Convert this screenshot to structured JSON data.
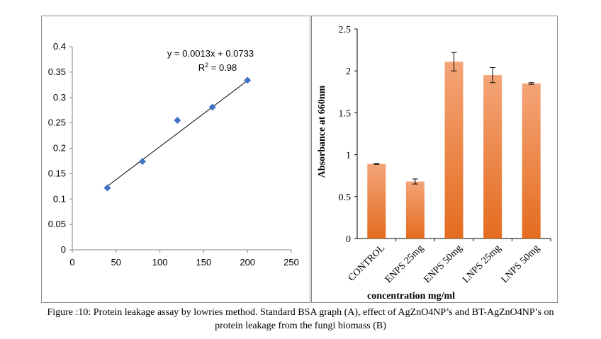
{
  "chart_data": [
    {
      "type": "scatter",
      "x": [
        40,
        80,
        120,
        160,
        200
      ],
      "y": [
        0.122,
        0.174,
        0.255,
        0.281,
        0.334
      ],
      "xlim": [
        0,
        250
      ],
      "ylim": [
        0,
        0.4
      ],
      "xticks": [
        "0",
        "50",
        "100",
        "150",
        "200",
        "250"
      ],
      "yticks": [
        "0",
        "0.05",
        "0.1",
        "0.15",
        "0.2",
        "0.25",
        "0.3",
        "0.35",
        "0.4"
      ],
      "trendline": {
        "slope": 0.0013,
        "intercept": 0.0733,
        "x_range": [
          40,
          200
        ]
      },
      "equation_label": "y = 0.0013x + 0.0733",
      "r2_label_prefix": "R",
      "r2_label_sup": "2",
      "r2_label_value": " = 0.98",
      "marker_color": "#4472C4",
      "grid": false
    },
    {
      "type": "bar",
      "categories": [
        "CONTROL",
        "ENPS 25mg",
        "ENPS 50mg",
        "LNPS 25mg",
        "LNPS 50mg"
      ],
      "values": [
        0.89,
        0.68,
        2.11,
        1.95,
        1.85
      ],
      "errors": [
        0.005,
        0.03,
        0.11,
        0.09,
        0.01
      ],
      "ylim": [
        0,
        2.5
      ],
      "yticks": [
        "0",
        "0.5",
        "1",
        "1.5",
        "2",
        "2.5"
      ],
      "xlabel": "concentration mg/ml",
      "ylabel": "Absorbance at 660nm",
      "bar_color_top": "#F4A477",
      "bar_color_bottom": "#E46C1F",
      "grid": false
    }
  ],
  "caption": {
    "line1": "Figure :10:  Protein leakage assay by lowries method. Standard BSA graph (A), effect of AgZnO4NP’s and BT-AgZnO4NP’s on",
    "line2": "protein leakage from the fungi biomass (B)"
  }
}
